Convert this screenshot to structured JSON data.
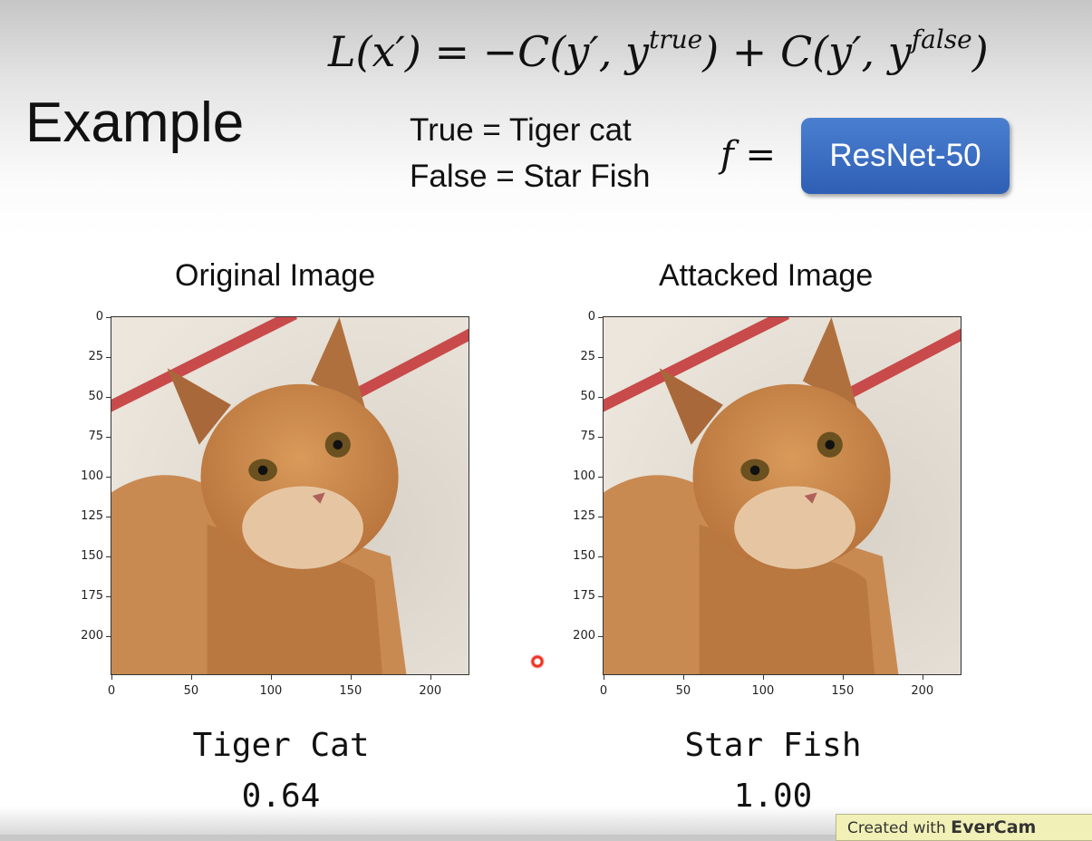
{
  "formula": {
    "lhs": "L(x′) = −C(y′, y",
    "sup1": "true",
    "mid": ") + C(y′, y",
    "sup2": "false",
    "end": ")"
  },
  "heading": "Example",
  "labels": {
    "true_line": "True = Tiger cat",
    "false_line": "False = Star Fish"
  },
  "model": {
    "prefix": "f =",
    "button_label": "ResNet-50",
    "button_color": "#3a6fc4"
  },
  "plots": [
    {
      "title": "Original Image",
      "prediction": "Tiger Cat",
      "confidence": "0.64"
    },
    {
      "title": "Attacked Image",
      "prediction": "Star Fish",
      "confidence": "1.00"
    }
  ],
  "axes": {
    "y_ticks": [
      "0",
      "25",
      "50",
      "75",
      "100",
      "125",
      "150",
      "175",
      "200"
    ],
    "x_ticks": [
      "0",
      "50",
      "100",
      "150",
      "200"
    ],
    "range": [
      0,
      224
    ]
  },
  "watermark": {
    "prefix": "Created with",
    "brand": "EverCam"
  }
}
